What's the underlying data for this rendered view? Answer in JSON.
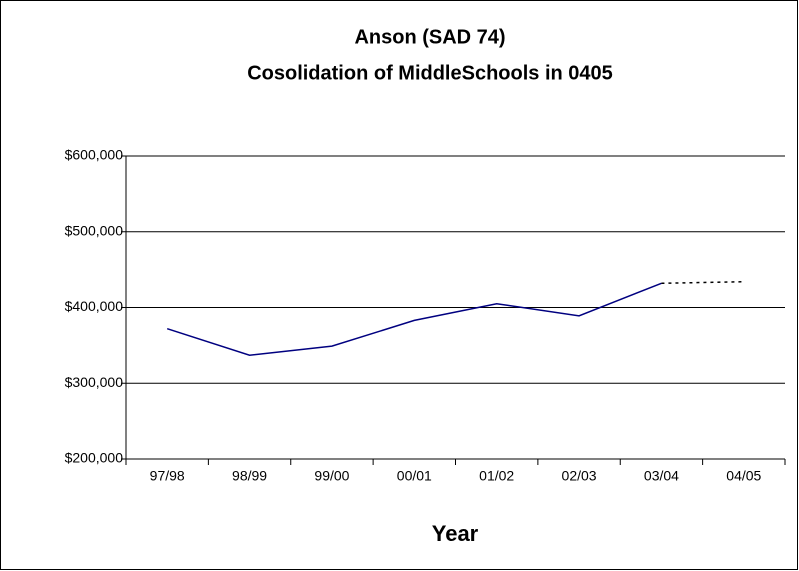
{
  "chart_data": {
    "type": "line",
    "title": [
      "Anson (SAD 74)",
      "Cosolidation of MiddleSchools in 0405"
    ],
    "x_label": "Year",
    "categories": [
      "97/98",
      "98/99",
      "99/00",
      "00/01",
      "01/02",
      "02/03",
      "03/04",
      "04/05"
    ],
    "series": [
      {
        "color": "#000080",
        "style": "solid",
        "values": [
          372000,
          337000,
          349000,
          383000,
          405000,
          389000,
          432000,
          null
        ]
      },
      {
        "color": "#000000",
        "style": "dotted",
        "values": [
          null,
          null,
          null,
          null,
          null,
          null,
          432000,
          434000
        ]
      }
    ],
    "ylim": [
      200000,
      600000
    ],
    "yticks": [
      {
        "value": 200000,
        "label": "$200,000"
      },
      {
        "value": 300000,
        "label": "$300,000"
      },
      {
        "value": 400000,
        "label": "$400,000"
      },
      {
        "value": 500000,
        "label": "$500,000"
      },
      {
        "value": 600000,
        "label": "$600,000"
      }
    ],
    "grid": true
  }
}
